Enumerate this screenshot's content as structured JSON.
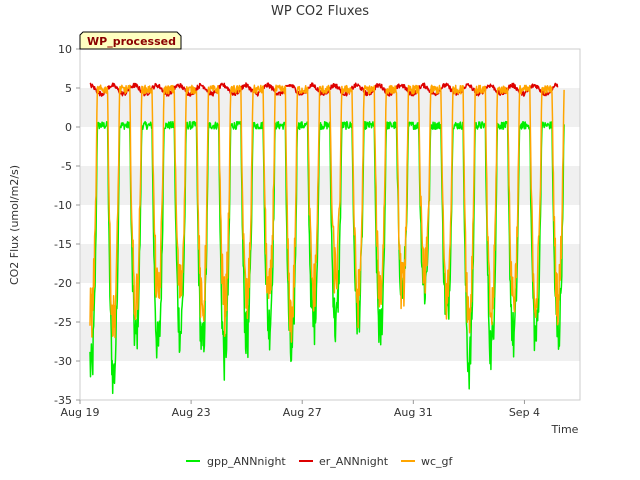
{
  "chart_data": {
    "type": "line",
    "title": "WP CO2 Fluxes",
    "badge": "WP_processed",
    "xlabel": "Time",
    "ylabel": "CO2 Flux (umol/m2/s)",
    "x_start_day": 0,
    "x_end_day": 22.5,
    "xlim": [
      0,
      22.5
    ],
    "ylim": [
      -35,
      10
    ],
    "yticks": [
      10,
      5,
      0,
      -5,
      -10,
      -15,
      -20,
      -25,
      -30,
      -35
    ],
    "xticks": [
      {
        "day": 0,
        "label": "Aug 19"
      },
      {
        "day": 5,
        "label": "Aug 23"
      },
      {
        "day": 10,
        "label": "Aug 27"
      },
      {
        "day": 15,
        "label": "Aug 31"
      },
      {
        "day": 20,
        "label": "Sep 4"
      }
    ],
    "bands": [
      [
        5,
        0
      ],
      [
        -5,
        -10
      ],
      [
        -15,
        -20
      ],
      [
        -25,
        -30
      ]
    ],
    "series": [
      {
        "name": "gpp_ANNnight",
        "color": "#00ee00",
        "night_mean": 0.2,
        "noise": 1.0,
        "daily_min": [
          -31.3,
          -32.0,
          -27.2,
          -28.4,
          -26.2,
          -28.4,
          -29.4,
          -27.2,
          -25.4,
          -29.4,
          -25.4,
          -25.4,
          -24.4,
          -26.4,
          -21.0,
          -20.4,
          -24.0,
          -30.4,
          -28.6,
          -27.0
        ]
      },
      {
        "name": "er_ANNnight",
        "color": "#dd0000",
        "base": 4.8,
        "amp": 0.9,
        "end_day": 21.5
      },
      {
        "name": "wc_gf",
        "color": "#ffa500",
        "night_mean": 4.8,
        "noise": 1.1,
        "daily_min": [
          -24.0,
          -25.0,
          -22.6,
          -22.0,
          -21.0,
          -24.0,
          -23.0,
          -22.6,
          -22.0,
          -24.6,
          -21.0,
          -19.0,
          -22.0,
          -21.0,
          -21.0,
          -19.6,
          -22.0,
          -24.0,
          -24.0,
          -22.0
        ]
      }
    ],
    "legend_position": "bottom-center"
  }
}
